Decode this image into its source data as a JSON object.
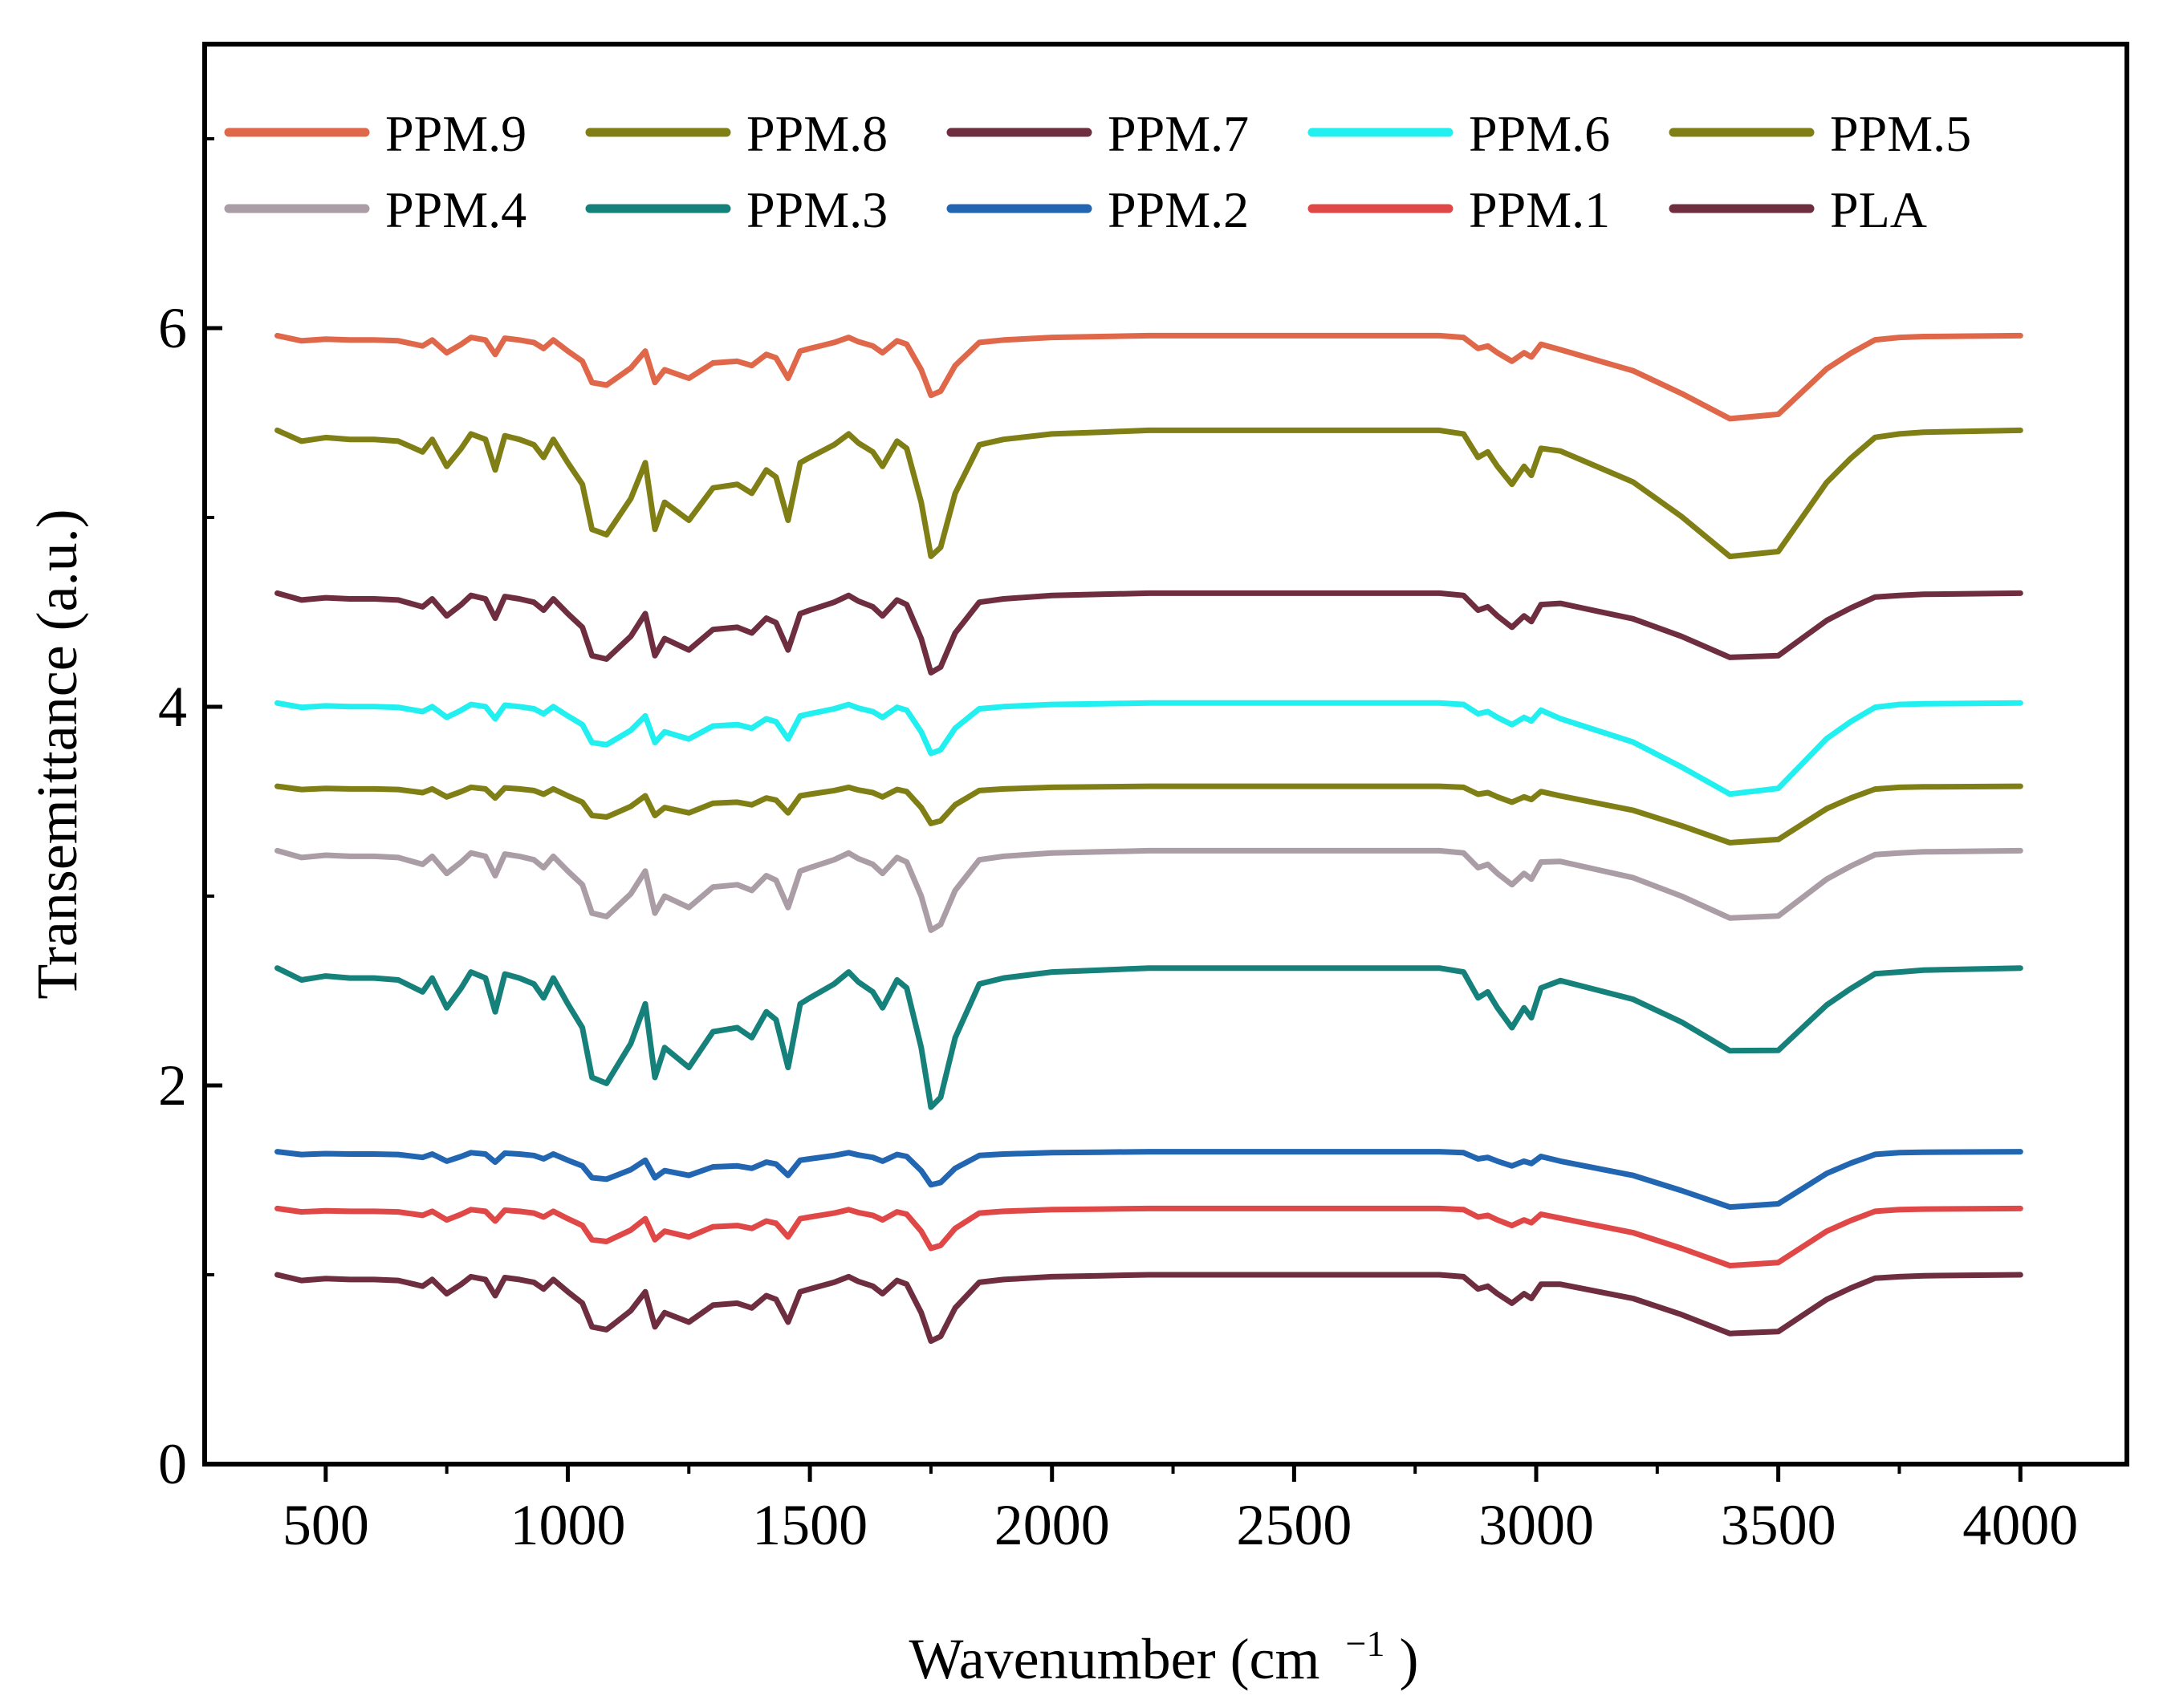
{
  "chart_data": {
    "type": "line",
    "title": "",
    "xlabel": "Wavenumber (cm",
    "xlabel_sup": "−1",
    "xlabel_close": ")",
    "ylabel": "Transemittance (a.u.)",
    "xlim": [
      250,
      4220
    ],
    "ylim": [
      0,
      7.5
    ],
    "x_ticks": [
      500,
      1000,
      1500,
      2000,
      2500,
      3000,
      3500,
      4000
    ],
    "x_tick_labels": [
      "500",
      "1000",
      "1500",
      "2000",
      "2500",
      "3000",
      "3500",
      "4000"
    ],
    "y_ticks": [
      0,
      2,
      4,
      6
    ],
    "y_tick_labels": [
      "0",
      "2",
      "4",
      "6"
    ],
    "legend_position": "top",
    "x": [
      400,
      450,
      500,
      550,
      600,
      650,
      700,
      720,
      750,
      780,
      800,
      830,
      850,
      870,
      900,
      930,
      950,
      970,
      1000,
      1030,
      1050,
      1080,
      1100,
      1130,
      1160,
      1180,
      1200,
      1250,
      1300,
      1350,
      1380,
      1410,
      1430,
      1455,
      1480,
      1500,
      1550,
      1580,
      1600,
      1630,
      1650,
      1680,
      1700,
      1730,
      1750,
      1770,
      1800,
      1850,
      1900,
      2000,
      2100,
      2200,
      2500,
      2800,
      2850,
      2880,
      2900,
      2920,
      2950,
      2975,
      2990,
      3010,
      3050,
      3100,
      3200,
      3300,
      3400,
      3500,
      3550,
      3600,
      3650,
      3700,
      3750,
      3800,
      4000
    ],
    "series": [
      {
        "name": "PPM.9",
        "color": "#e0684a",
        "base": 5.96,
        "scale": 0.45,
        "h_scale": 0.65
      },
      {
        "name": "PPM.8",
        "color": "#7f7f16",
        "base": 5.46,
        "scale": 0.95,
        "h_scale": 0.9
      },
      {
        "name": "PPM.7",
        "color": "#6e2e3f",
        "base": 4.6,
        "scale": 0.6,
        "h_scale": 0.42
      },
      {
        "name": "PPM.6",
        "color": "#22f0f0",
        "base": 4.02,
        "scale": 0.38,
        "h_scale": 0.75
      },
      {
        "name": "PPM.5",
        "color": "#7f7f16",
        "base": 3.58,
        "scale": 0.28,
        "h_scale": 0.45
      },
      {
        "name": "PPM.4",
        "color": "#aa9da5",
        "base": 3.24,
        "scale": 0.6,
        "h_scale": 0.45
      },
      {
        "name": "PPM.3",
        "color": "#16807a",
        "base": 2.62,
        "scale": 1.05,
        "h_scale": 0.45
      },
      {
        "name": "PPM.2",
        "color": "#2266b2",
        "base": 1.65,
        "scale": 0.25,
        "h_scale": 0.45
      },
      {
        "name": "PPM.1",
        "color": "#e04848",
        "base": 1.35,
        "scale": 0.3,
        "h_scale": 0.45
      },
      {
        "name": "PLA",
        "color": "#6e2e3f",
        "base": 1.0,
        "scale": 0.5,
        "h_scale": 0.4
      }
    ],
    "profile": [
      0,
      0.06,
      0.04,
      0.05,
      0.05,
      0.06,
      0.12,
      0.05,
      0.2,
      0.1,
      0.02,
      0.05,
      0.22,
      0.03,
      0.05,
      0.08,
      0.15,
      0.05,
      0.18,
      0.3,
      0.55,
      0.58,
      0.5,
      0.38,
      0.18,
      0.55,
      0.4,
      0.5,
      0.32,
      0.3,
      0.35,
      0.22,
      0.26,
      0.5,
      0.18,
      0.15,
      0.08,
      0.02,
      0.07,
      0.12,
      0.2,
      0.06,
      0.1,
      0.4,
      0.7,
      0.65,
      0.35,
      0.08,
      0.05,
      0.02,
      0.01,
      0,
      0,
      0,
      0.02,
      0.15,
      0.12,
      0.2,
      0.3,
      0.2,
      0.25,
      0.1,
      0.02,
      0.03,
      0.05,
      0.1,
      0.18,
      0.2,
      0.15,
      0.1,
      0.06,
      0.02,
      0.02,
      0.01,
      0
    ],
    "h_profile": [
      0,
      0,
      0,
      0,
      0,
      0,
      0,
      0,
      0,
      0,
      0,
      0,
      0,
      0,
      0,
      0,
      0,
      0,
      0,
      0,
      0,
      0,
      0,
      0,
      0,
      0,
      0,
      0,
      0,
      0,
      0,
      0,
      0,
      0,
      0,
      0,
      0,
      0,
      0,
      0,
      0,
      0,
      0,
      0,
      0,
      0,
      0,
      0,
      0,
      0,
      0,
      0,
      0,
      0,
      0,
      0,
      0,
      0,
      0,
      0,
      0,
      0,
      0.1,
      0.15,
      0.25,
      0.4,
      0.55,
      0.5,
      0.35,
      0.2,
      0.1,
      0.02,
      0,
      0,
      0
    ]
  }
}
